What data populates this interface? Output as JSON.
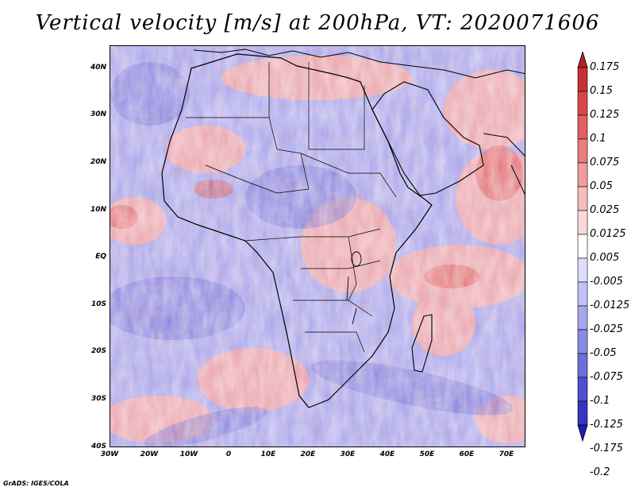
{
  "title": "Vertical velocity [m/s] at 200hPa, VT: 2020071606",
  "map": {
    "lon_range": [
      -30,
      75
    ],
    "lat_range": [
      -40,
      45
    ],
    "lat_labels": [
      "40N",
      "30N",
      "20N",
      "10N",
      "EQ",
      "10S",
      "20S",
      "30S",
      "40S"
    ],
    "lon_labels": [
      "30W",
      "20W",
      "10W",
      "0",
      "10E",
      "20E",
      "30E",
      "40E",
      "50E",
      "60E",
      "70E"
    ]
  },
  "colorbar": {
    "labels": [
      "0.175",
      "0.15",
      "0.125",
      "0.1",
      "0.075",
      "0.05",
      "0.025",
      "0.0125",
      "0.005",
      "-0.005",
      "-0.0125",
      "-0.025",
      "-0.05",
      "-0.075",
      "-0.1",
      "-0.125",
      "-0.175",
      "-0.2"
    ],
    "colors": [
      "#b22222",
      "#c83232",
      "#d84646",
      "#e25f5f",
      "#ea7d7d",
      "#f19c9c",
      "#f7bcbc",
      "#fbd9d9",
      "#ffffff",
      "#dcdcfc",
      "#c2c2f7",
      "#a6a6f0",
      "#8a8ae6",
      "#6d6ddb",
      "#5050cf",
      "#3535c1",
      "#1f1fb0"
    ]
  },
  "credit": "GrADS: IGES/COLA"
}
